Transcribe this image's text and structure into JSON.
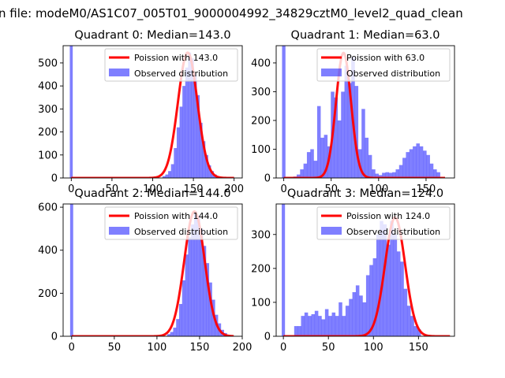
{
  "figure": {
    "suptitle": "n file: modeM0/AS1C07_005T01_9000004992_34829cztM0_level2_quad_clean"
  },
  "chart_data": [
    {
      "type": "bar",
      "title": "Quadrant 0: Median=143.0",
      "xlim": [
        -10,
        210
      ],
      "ylim": [
        0,
        575
      ],
      "xticks": [
        0,
        50,
        100,
        150,
        200
      ],
      "yticks": [
        0,
        100,
        200,
        300,
        400,
        500
      ],
      "legend": [
        "Poission with 143.0",
        "Observed distribution"
      ],
      "legend_position": "top-right",
      "zero_bin_count": 575,
      "hist": {
        "bin_start": 112,
        "bin_width": 3.5,
        "values": [
          8,
          15,
          30,
          60,
          130,
          220,
          310,
          400,
          480,
          545,
          520,
          450,
          360,
          240,
          160,
          100,
          55,
          30,
          15,
          8,
          4,
          2
        ]
      },
      "poisson": {
        "lambda": 143.0,
        "peak": 545,
        "x_range": [
          0,
          200
        ]
      }
    },
    {
      "type": "bar",
      "title": "Quadrant 1: Median=63.0",
      "xlim": [
        -8,
        180
      ],
      "ylim": [
        0,
        460
      ],
      "xticks": [
        0,
        50,
        100,
        150
      ],
      "yticks": [
        0,
        100,
        200,
        300,
        400
      ],
      "legend": [
        "Poission with 63.0",
        "Observed distribution"
      ],
      "legend_position": "top-right",
      "zero_bin_count": 460,
      "hist": {
        "bin_start": 10,
        "bin_width": 3.6,
        "values": [
          5,
          12,
          30,
          50,
          90,
          100,
          60,
          250,
          140,
          150,
          110,
          300,
          280,
          200,
          300,
          390,
          330,
          420,
          320,
          100,
          240,
          140,
          80,
          30,
          15,
          10,
          18,
          20,
          18,
          20,
          30,
          45,
          70,
          90,
          100,
          110,
          120,
          110,
          95,
          80,
          50,
          30,
          20
        ]
      },
      "poisson": {
        "lambda": 63.0,
        "peak": 435,
        "x_range": [
          0,
          170
        ]
      }
    },
    {
      "type": "bar",
      "title": "Quadrant 2: Median=144.0",
      "xlim": [
        -10,
        200
      ],
      "ylim": [
        0,
        615
      ],
      "xticks": [
        0,
        50,
        100,
        150,
        200
      ],
      "yticks": [
        0,
        200,
        400,
        600
      ],
      "legend": [
        "Poission with 144.0",
        "Observed distribution"
      ],
      "legend_position": "top-right",
      "zero_bin_count": 615,
      "hist": {
        "bin_start": 112,
        "bin_width": 3.5,
        "values": [
          10,
          20,
          40,
          80,
          150,
          260,
          380,
          460,
          520,
          580,
          560,
          500,
          420,
          340,
          250,
          170,
          100,
          60,
          30,
          15,
          6,
          3
        ]
      },
      "poisson": {
        "lambda": 144.0,
        "peak": 580,
        "x_range": [
          0,
          190
        ]
      }
    },
    {
      "type": "bar",
      "title": "Quadrant 3: Median=124.0",
      "xlim": [
        -8,
        190
      ],
      "ylim": [
        0,
        390
      ],
      "xticks": [
        0,
        50,
        100,
        150
      ],
      "yticks": [
        0,
        100,
        200,
        300
      ],
      "legend": [
        "Poission with 124.0",
        "Observed distribution"
      ],
      "legend_position": "top-right",
      "zero_bin_count": 390,
      "hist": {
        "bin_start": 12,
        "bin_width": 3.8,
        "values": [
          30,
          30,
          60,
          70,
          60,
          65,
          75,
          60,
          50,
          80,
          60,
          70,
          60,
          100,
          60,
          90,
          110,
          130,
          150,
          120,
          100,
          180,
          210,
          230,
          300,
          340,
          330,
          270,
          340,
          300,
          250,
          220,
          140,
          90,
          60,
          30,
          20
        ]
      },
      "poisson": {
        "lambda": 124.0,
        "peak": 350,
        "x_range": [
          0,
          185
        ]
      }
    }
  ]
}
